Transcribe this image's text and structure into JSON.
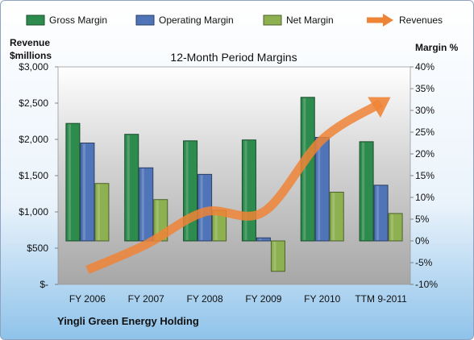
{
  "chart_data": {
    "type": "bar",
    "title": "12-Month Period Margins",
    "company": "Yingli Green Energy Holding",
    "left_axis_label_line1": "Revenue",
    "left_axis_label_line2": "$millions",
    "right_axis_label": "Margin %",
    "categories": [
      "FY 2006",
      "FY 2007",
      "FY 2008",
      "FY 2009",
      "FY 2010",
      "TTM 9-2011"
    ],
    "revenue_ticks": [
      "$-",
      "$500",
      "$1,000",
      "$1,500",
      "$2,000",
      "$2,500",
      "$3,000"
    ],
    "margin_ticks": [
      "-10%",
      "-5%",
      "0%",
      "5%",
      "10%",
      "15%",
      "20%",
      "25%",
      "30%",
      "35%",
      "40%"
    ],
    "ylim_revenue": [
      0,
      3000
    ],
    "ylim_margin": [
      -10,
      40
    ],
    "legend_position": "top",
    "series": [
      {
        "name": "Gross Margin",
        "axis": "margin",
        "color": "#2e8b4e",
        "values": [
          27,
          24.5,
          23,
          23.2,
          33,
          22.8
        ]
      },
      {
        "name": "Operating Margin",
        "axis": "margin",
        "color": "#4f75b8",
        "values": [
          22.5,
          16.8,
          15.3,
          0.7,
          23.8,
          12.8
        ]
      },
      {
        "name": "Net Margin",
        "axis": "margin",
        "color": "#8db050",
        "values": [
          13.2,
          9.5,
          7,
          -7,
          11.2,
          6.3
        ]
      },
      {
        "name": "Revenues",
        "axis": "revenue",
        "type": "line",
        "color": "#ee8436",
        "values": [
          200,
          550,
          1000,
          1000,
          2000,
          2500
        ]
      }
    ]
  }
}
